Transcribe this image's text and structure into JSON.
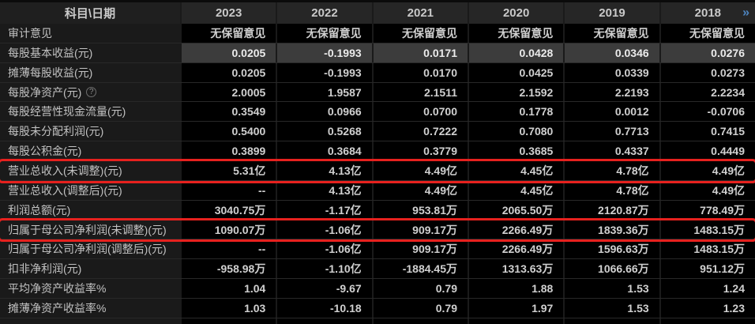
{
  "table": {
    "help_icon": "?",
    "header": {
      "label_col": "科目\\日期",
      "years": [
        "2023",
        "2022",
        "2021",
        "2020",
        "2019",
        "2018"
      ],
      "more_icon": "»"
    },
    "rows": [
      {
        "label": "审计意见",
        "values": [
          "无保留意见",
          "无保留意见",
          "无保留意见",
          "无保留意见",
          "无保留意见",
          "无保留意见"
        ]
      },
      {
        "label": "每股基本收益(元)",
        "highlighted": true,
        "values": [
          "0.0205",
          "-0.1993",
          "0.0171",
          "0.0428",
          "0.0346",
          "0.0276"
        ]
      },
      {
        "label": "摊薄每股收益(元)",
        "values": [
          "0.0205",
          "-0.1993",
          "0.0170",
          "0.0425",
          "0.0339",
          "0.0273"
        ]
      },
      {
        "label": "每股净资产(元)",
        "help": true,
        "values": [
          "2.0005",
          "1.9587",
          "2.1511",
          "2.1592",
          "2.2193",
          "2.2234"
        ]
      },
      {
        "label": "每股经营性现金流量(元)",
        "values": [
          "0.3549",
          "0.0966",
          "0.0700",
          "0.1778",
          "0.0012",
          "-0.0706"
        ]
      },
      {
        "label": "每股未分配利润(元)",
        "values": [
          "0.5400",
          "0.5268",
          "0.7222",
          "0.7080",
          "0.7713",
          "0.7415"
        ]
      },
      {
        "label": "每股公积金(元)",
        "values": [
          "0.3899",
          "0.3684",
          "0.3779",
          "0.3685",
          "0.4337",
          "0.4449"
        ]
      },
      {
        "label": "营业总收入(未调整)(元)",
        "red_box": true,
        "values": [
          "5.31亿",
          "4.13亿",
          "4.49亿",
          "4.45亿",
          "4.78亿",
          "4.49亿"
        ]
      },
      {
        "label": "营业总收入(调整后)(元)",
        "values": [
          "--",
          "4.13亿",
          "4.49亿",
          "4.45亿",
          "4.78亿",
          "4.49亿"
        ]
      },
      {
        "label": "利润总额(元)",
        "values": [
          "3040.75万",
          "-1.17亿",
          "953.81万",
          "2065.50万",
          "2120.87万",
          "778.49万"
        ]
      },
      {
        "label": "归属于母公司净利润(未调整)(元)",
        "red_box": true,
        "values": [
          "1090.07万",
          "-1.06亿",
          "909.17万",
          "2266.49万",
          "1839.36万",
          "1483.15万"
        ]
      },
      {
        "label": "归属于母公司净利润(调整后)(元)",
        "values": [
          "--",
          "-1.06亿",
          "909.17万",
          "2266.49万",
          "1596.63万",
          "1483.15万"
        ]
      },
      {
        "label": "扣非净利润(元)",
        "values": [
          "-958.98万",
          "-1.10亿",
          "-1884.45万",
          "1313.63万",
          "1066.66万",
          "951.12万"
        ]
      },
      {
        "label": "平均净资产收益率%",
        "values": [
          "1.04",
          "-9.67",
          "0.79",
          "1.88",
          "1.53",
          "1.24"
        ]
      },
      {
        "label": "摊薄净资产收益率%",
        "values": [
          "1.03",
          "-10.18",
          "0.79",
          "1.97",
          "1.53",
          "1.23"
        ]
      }
    ]
  },
  "colors": {
    "page_background": "#1a1a1a",
    "cell_background": "#000000",
    "header_background": "#262626",
    "highlight_row_background": "#3c3c3c",
    "text": "#d0d0d0",
    "red_box_border": "#e6211e",
    "more_icon_blue": "#4e86c1"
  }
}
